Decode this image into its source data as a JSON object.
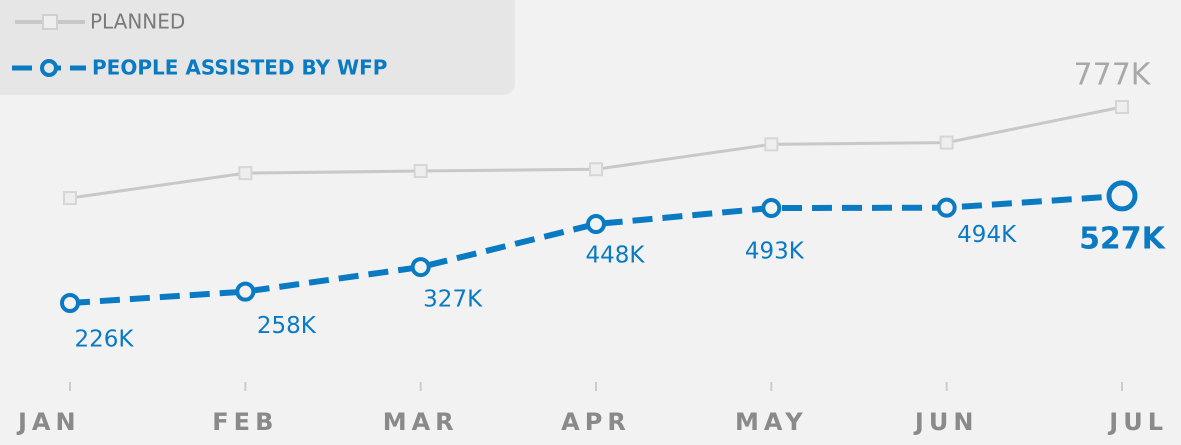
{
  "chart_data": {
    "type": "line",
    "categories": [
      "JAN",
      "FEB",
      "MAR",
      "APR",
      "MAY",
      "JUN",
      "JUL"
    ],
    "series": [
      {
        "name": "PLANNED",
        "color": "#c8c8c8",
        "values": [
          521,
          591,
          597,
          602,
          672,
          677,
          777
        ],
        "value_labels": [
          null,
          null,
          null,
          null,
          null,
          null,
          "777K"
        ]
      },
      {
        "name": "PEOPLE ASSISTED BY WFP",
        "color": "#0a7bc2",
        "values": [
          226,
          258,
          327,
          448,
          493,
          494,
          527
        ],
        "value_labels": [
          "226K",
          "258K",
          "327K",
          "448K",
          "493K",
          "494K",
          "527K"
        ]
      }
    ]
  }
}
